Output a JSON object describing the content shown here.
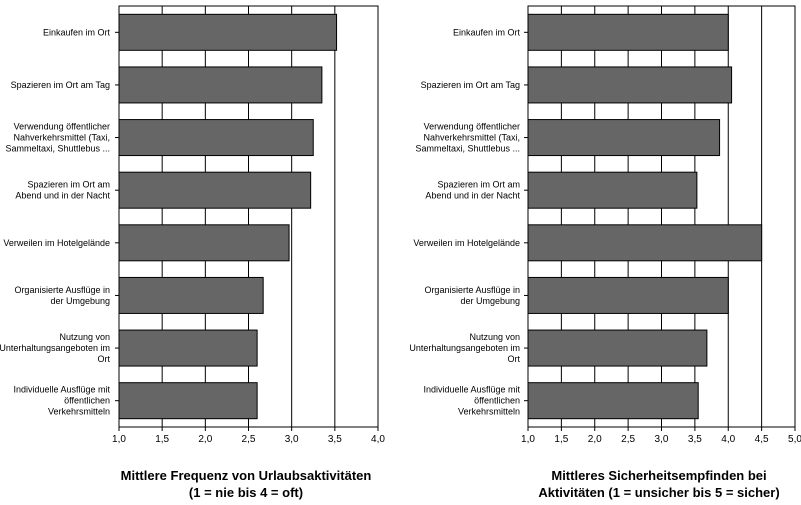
{
  "chart_data": [
    {
      "type": "bar",
      "orientation": "horizontal",
      "categories": [
        [
          "Einkaufen im Ort"
        ],
        [
          "Spazieren im Ort am Tag"
        ],
        [
          "Verwendung öffentlicher",
          "Nahverkehrsmittel (Taxi,",
          "Sammeltaxi, Shuttlebus ..."
        ],
        [
          "Spazieren im Ort am",
          "Abend und in der Nacht"
        ],
        [
          "Verweilen im Hotelgelände"
        ],
        [
          "Organisierte Ausflüge in",
          "der Umgebung"
        ],
        [
          "Nutzung von",
          "Unterhaltungsangeboten im",
          "Ort"
        ],
        [
          "Individuelle Ausflüge mit",
          "öffentlichen",
          "Verkehrsmitteln"
        ]
      ],
      "values": [
        3.52,
        3.35,
        3.25,
        3.22,
        2.97,
        2.67,
        2.6,
        2.6
      ],
      "xlim": [
        1.0,
        4.0
      ],
      "xticks": [
        "1,0",
        "1,5",
        "2,0",
        "2,5",
        "3,0",
        "3,5",
        "4,0"
      ],
      "xlabel": [
        "Mittlere Frequenz von Urlaubsaktivitäten",
        "(1 = nie bis 4 = oft)"
      ],
      "ylabel": "",
      "title": "",
      "grid": true,
      "colors": {
        "bar": "#666666",
        "bar_stroke": "#000000",
        "grid": "#000000"
      }
    },
    {
      "type": "bar",
      "orientation": "horizontal",
      "categories": [
        [
          "Einkaufen im Ort"
        ],
        [
          "Spazieren im Ort am Tag"
        ],
        [
          "Verwendung öffentlicher",
          "Nahverkehrsmittel (Taxi,",
          "Sammeltaxi, Shuttlebus ..."
        ],
        [
          "Spazieren im Ort am",
          "Abend und in der Nacht"
        ],
        [
          "Verweilen im Hotelgelände"
        ],
        [
          "Organisierte Ausflüge in",
          "der Umgebung"
        ],
        [
          "Nutzung von",
          "Unterhaltungsangeboten im",
          "Ort"
        ],
        [
          "Individuelle Ausflüge mit",
          "öffentlichen",
          "Verkehrsmitteln"
        ]
      ],
      "values": [
        4.0,
        4.05,
        3.87,
        3.53,
        4.5,
        4.0,
        3.68,
        3.55
      ],
      "xlim": [
        1.0,
        5.0
      ],
      "xticks": [
        "1,0",
        "1,5",
        "2,0",
        "2,5",
        "3,0",
        "3,5",
        "4,0",
        "4,5",
        "5,0"
      ],
      "xlabel": [
        "Mittleres Sicherheitsempfinden bei",
        "Aktivitäten (1 = unsicher bis 5 =  sicher)"
      ],
      "ylabel": "",
      "title": "",
      "grid": true,
      "colors": {
        "bar": "#666666",
        "bar_stroke": "#000000",
        "grid": "#000000"
      }
    }
  ]
}
